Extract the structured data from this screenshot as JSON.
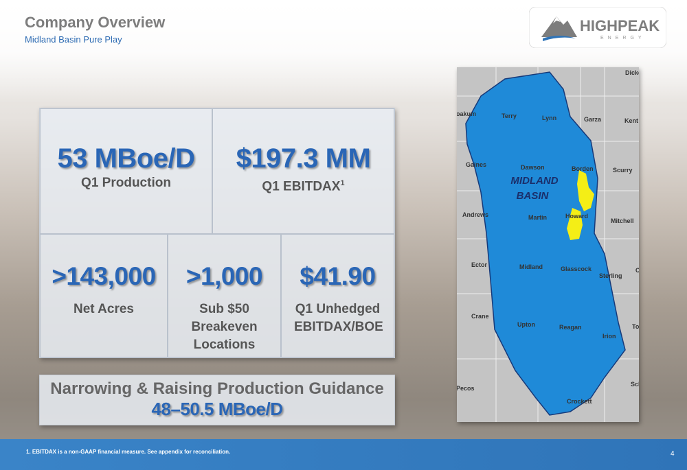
{
  "header": {
    "title": "Company Overview",
    "subtitle": "Midland Basin Pure Play"
  },
  "logo": {
    "name": "HIGHPEAK",
    "tagline": "ENERGY"
  },
  "stats": [
    {
      "value": "53 MBoe/D",
      "label": "Q1 Production"
    },
    {
      "value": "$197.3 MM",
      "label": "Q1 EBITDAX",
      "footnote_ref": "1"
    },
    {
      "value": ">143,000",
      "label": "Net Acres"
    },
    {
      "value": ">1,000",
      "label": "Sub $50 Breakeven Locations"
    },
    {
      "value": "$41.90",
      "label": "Q1 Unhedged EBITDAX/BOE"
    }
  ],
  "guidance": {
    "title": "Narrowing & Raising Production Guidance",
    "value": "48–50.5 MBoe/D"
  },
  "map": {
    "basin_label": [
      "MIDLAND",
      "BASIN"
    ],
    "counties": [
      "Dickens",
      "oakum",
      "Terry",
      "Lynn",
      "Garza",
      "Kent",
      "Gaines",
      "Dawson",
      "Borden",
      "Scurry",
      "Andrews",
      "Martin",
      "Howard",
      "Mitchell",
      "Ector",
      "Midland",
      "Glasscock",
      "Sterling",
      "C",
      "Crane",
      "Upton",
      "Reagan",
      "Irion",
      "To",
      "Pecos",
      "Crockett",
      "Schle"
    ]
  },
  "footnote": "1.  EBITDAX is a non-GAAP financial measure. See appendix for reconciliation.",
  "page_number": "4"
}
